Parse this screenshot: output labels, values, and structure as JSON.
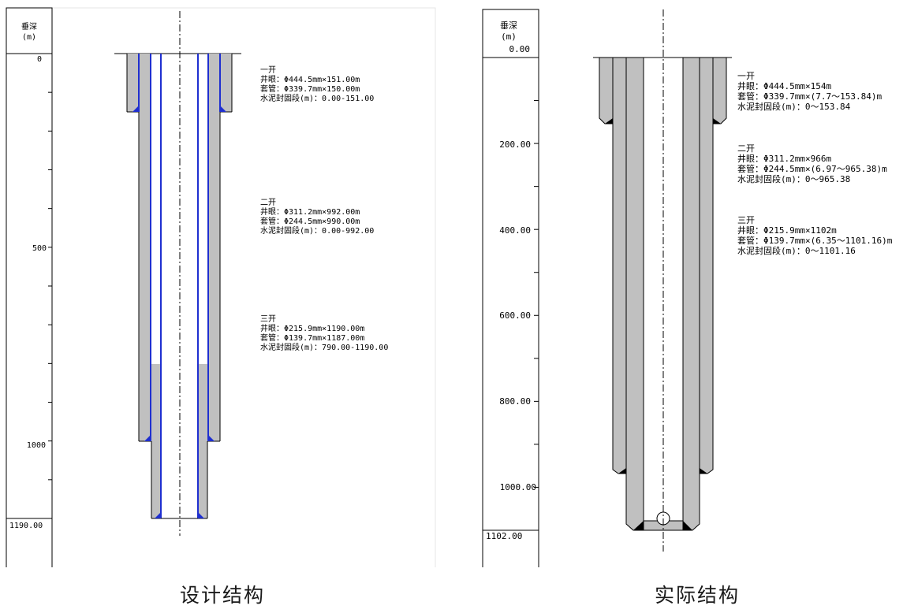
{
  "design": {
    "axis_title": "垂深",
    "axis_unit": "(m)",
    "ticks": [
      "0",
      "500",
      "1000"
    ],
    "bottom_label": "1190.00",
    "sections": [
      {
        "title": "一开",
        "hole": "井眼：Φ444.5mm×151.00m",
        "casing": "套管：Φ339.7mm×150.00m",
        "cement": "水泥封固段(m)：0.00-151.00"
      },
      {
        "title": "二开",
        "hole": "井眼：Φ311.2mm×992.00m",
        "casing": "套管：Φ244.5mm×990.00m",
        "cement": "水泥封固段(m)：0.00-992.00"
      },
      {
        "title": "三开",
        "hole": "井眼：Φ215.9mm×1190.00m",
        "casing": "套管：Φ139.7mm×1187.00m",
        "cement": "水泥封固段(m)：790.00-1190.00"
      }
    ],
    "caption": "设计结构"
  },
  "actual": {
    "axis_title": "垂深",
    "axis_unit": "(m)",
    "ticks": [
      "0.00",
      "200.00",
      "400.00",
      "600.00",
      "800.00",
      "1000.00"
    ],
    "bottom_label": "1102.00",
    "sections": [
      {
        "title": "一开",
        "hole": "井眼：Φ444.5mm×154m",
        "casing": "套管：Φ339.7mm×(7.7～153.84)m",
        "cement": "水泥封固段(m)：0～153.84"
      },
      {
        "title": "二开",
        "hole": "井眼：Φ311.2mm×966m",
        "casing": "套管：Φ244.5mm×(6.97～965.38)m",
        "cement": "水泥封固段(m)：0～965.38"
      },
      {
        "title": "三开",
        "hole": "井眼：Φ215.9mm×1102m",
        "casing": "套管：Φ139.7mm×(6.35～1101.16)m",
        "cement": "水泥封固段(m)：0～1101.16"
      }
    ],
    "caption": "实际结构"
  },
  "colors": {
    "cement": "#c0c0c0",
    "casing_design": "#1f2fd0",
    "line": "#000000"
  }
}
